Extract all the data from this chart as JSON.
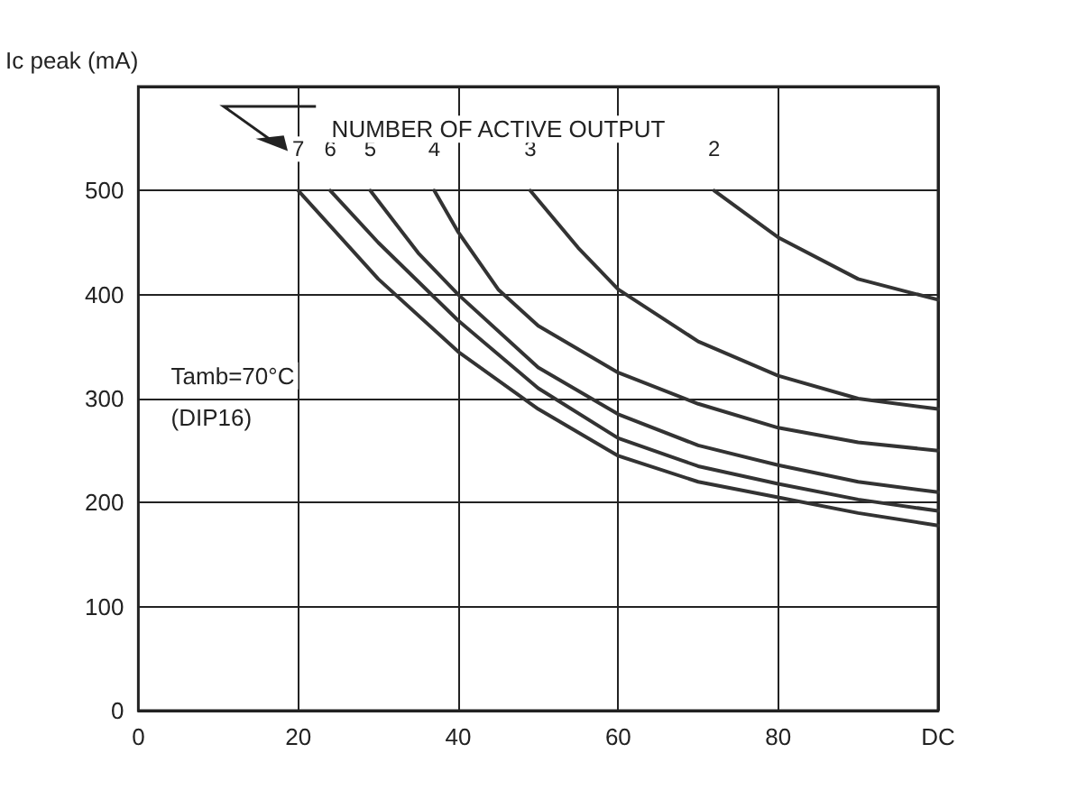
{
  "chart_data": {
    "type": "line",
    "ylabel": "Ic peak (mA)",
    "xlim": [
      0,
      100
    ],
    "xticks": [
      0,
      20,
      40,
      60,
      80,
      {
        "value": 100,
        "label": "DC"
      }
    ],
    "ylim": [
      0,
      600
    ],
    "yticks": [
      0,
      100,
      200,
      300,
      400,
      500,
      {
        "value": 600,
        "label": null
      }
    ],
    "grid": true,
    "marker": "none",
    "line_style": "solid",
    "annotations": [
      "NUMBER OF ACTIVE OUTPUT",
      "Tamb=70°C",
      "(DIP16)"
    ],
    "series": [
      {
        "name": "7",
        "color": "#333333",
        "x": [
          20,
          30,
          40,
          50,
          60,
          70,
          80,
          90,
          100
        ],
        "values": [
          500,
          415,
          345,
          290,
          245,
          220,
          205,
          190,
          178
        ]
      },
      {
        "name": "6",
        "color": "#333333",
        "x": [
          24,
          30,
          40,
          50,
          60,
          70,
          80,
          90,
          100
        ],
        "values": [
          500,
          450,
          375,
          310,
          262,
          235,
          218,
          203,
          192
        ]
      },
      {
        "name": "5",
        "color": "#333333",
        "x": [
          29,
          35,
          40,
          50,
          60,
          70,
          80,
          90,
          100
        ],
        "values": [
          500,
          440,
          400,
          330,
          285,
          255,
          236,
          220,
          210
        ]
      },
      {
        "name": "4",
        "color": "#333333",
        "x": [
          37,
          40,
          45,
          50,
          60,
          70,
          80,
          90,
          100
        ],
        "values": [
          500,
          460,
          405,
          370,
          325,
          295,
          272,
          258,
          250
        ]
      },
      {
        "name": "3",
        "color": "#333333",
        "x": [
          49,
          55,
          60,
          70,
          80,
          90,
          100
        ],
        "values": [
          500,
          445,
          405,
          355,
          322,
          300,
          290
        ]
      },
      {
        "name": "2",
        "color": "#333333",
        "x": [
          72,
          80,
          90,
          100
        ],
        "values": [
          500,
          455,
          415,
          395
        ]
      }
    ]
  }
}
